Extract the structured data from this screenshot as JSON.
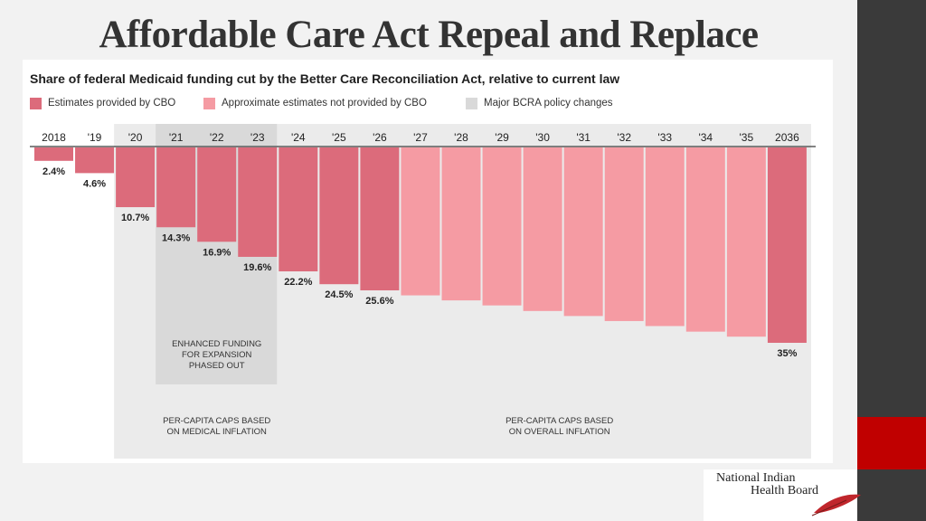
{
  "slide": {
    "title": "Affordable Care Act Repeal and Replace",
    "logo": {
      "line1": "National Indian",
      "line2": "Health Board",
      "icon": "feather-icon"
    }
  },
  "colors": {
    "cbo": "#dc6b7b",
    "non_cbo": "#f59ba3",
    "policy_shade": "#d9d9d9",
    "track_shade": "#ebebeb",
    "rail_dark": "#3a3a3a",
    "rail_red": "#c00000"
  },
  "chart_data": {
    "type": "bar",
    "title": "Share of federal Medicaid funding cut by the Better Care Reconciliation Act, relative to current law",
    "xlabel": "",
    "ylabel": "",
    "ylim": [
      0,
      44
    ],
    "y_direction": "downward",
    "legend": {
      "placement": "top-left",
      "items": [
        {
          "label": "Estimates provided by CBO",
          "color": "#dc6b7b"
        },
        {
          "label": "Approximate estimates not provided by CBO",
          "color": "#f59ba3"
        },
        {
          "label": "Major BCRA policy changes",
          "color": "#d9d9d9"
        }
      ]
    },
    "categories": [
      "2018",
      "'19",
      "'20",
      "'21",
      "'22",
      "'23",
      "'24",
      "'25",
      "'26",
      "'27",
      "'28",
      "'29",
      "'30",
      "'31",
      "'32",
      "'33",
      "'34",
      "'35",
      "2036"
    ],
    "values": [
      2.4,
      4.6,
      10.7,
      14.3,
      16.9,
      19.6,
      22.2,
      24.5,
      25.6,
      26.5,
      27.4,
      28.3,
      29.3,
      30.2,
      31.1,
      32.0,
      33.0,
      33.9,
      35
    ],
    "source": [
      "cbo",
      "cbo",
      "cbo",
      "cbo",
      "cbo",
      "cbo",
      "cbo",
      "cbo",
      "cbo",
      "estimate",
      "estimate",
      "estimate",
      "estimate",
      "estimate",
      "estimate",
      "estimate",
      "estimate",
      "estimate",
      "cbo"
    ],
    "data_labels": [
      "2.4%",
      "4.6%",
      "10.7%",
      "14.3%",
      "16.9%",
      "19.6%",
      "22.2%",
      "24.5%",
      "25.6%",
      "",
      "",
      "",
      "",
      "",
      "",
      "",
      "",
      "",
      "35%"
    ],
    "annotations": [
      {
        "text": [
          "ENHANCED FUNDING",
          "FOR EXPANSION",
          "PHASED OUT"
        ],
        "from": "'21",
        "to": "'23"
      },
      {
        "text": [
          "PER-CAPITA CAPS BASED",
          "ON MEDICAL INFLATION"
        ],
        "from": "'20",
        "to": "'24"
      },
      {
        "text": [
          "PER-CAPITA CAPS BASED",
          "ON OVERALL INFLATION"
        ],
        "from": "'25",
        "to": "2036"
      }
    ]
  }
}
